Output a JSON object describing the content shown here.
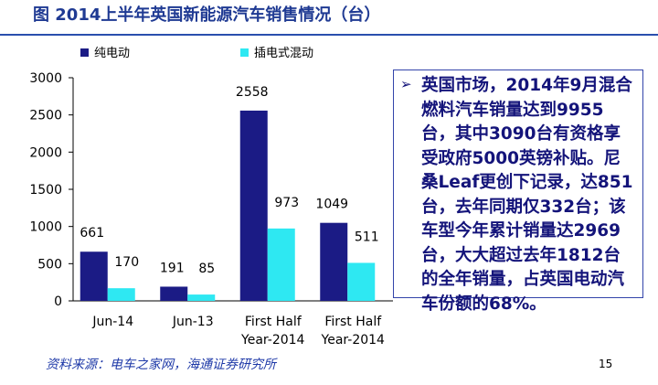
{
  "chart_data": {
    "type": "bar",
    "title": "图 2014上半年英国新能源汽车销售情况（台）",
    "categories": [
      "Jun-14",
      "Jun-13",
      "First Half Year-2014",
      "First Half Year-2014"
    ],
    "series": [
      {
        "name": "纯电动",
        "color": "#1b1b85",
        "values": [
          661,
          191,
          2558,
          1049
        ]
      },
      {
        "name": "插电式混动",
        "color": "#2ee8f2",
        "values": [
          170,
          85,
          973,
          511
        ]
      }
    ],
    "ylim": [
      0,
      3000
    ],
    "yticks": [
      0,
      500,
      1000,
      1500,
      2000,
      2500,
      3000
    ],
    "legend": "top",
    "annotation": "英国市场，2014年9月混合燃料汽车销量达到9955台，其中3090台有资格享受政府5000英镑补贴。尼桑Leaf更创下记录，达851台，去年同期仅332台；该车型今年累计销量达2969台，大大超过去年1812台的全年销量，占英国电动汽车份额的68%。",
    "source": "资料来源：电车之家网，海通证券研究所",
    "page_number": 15
  }
}
